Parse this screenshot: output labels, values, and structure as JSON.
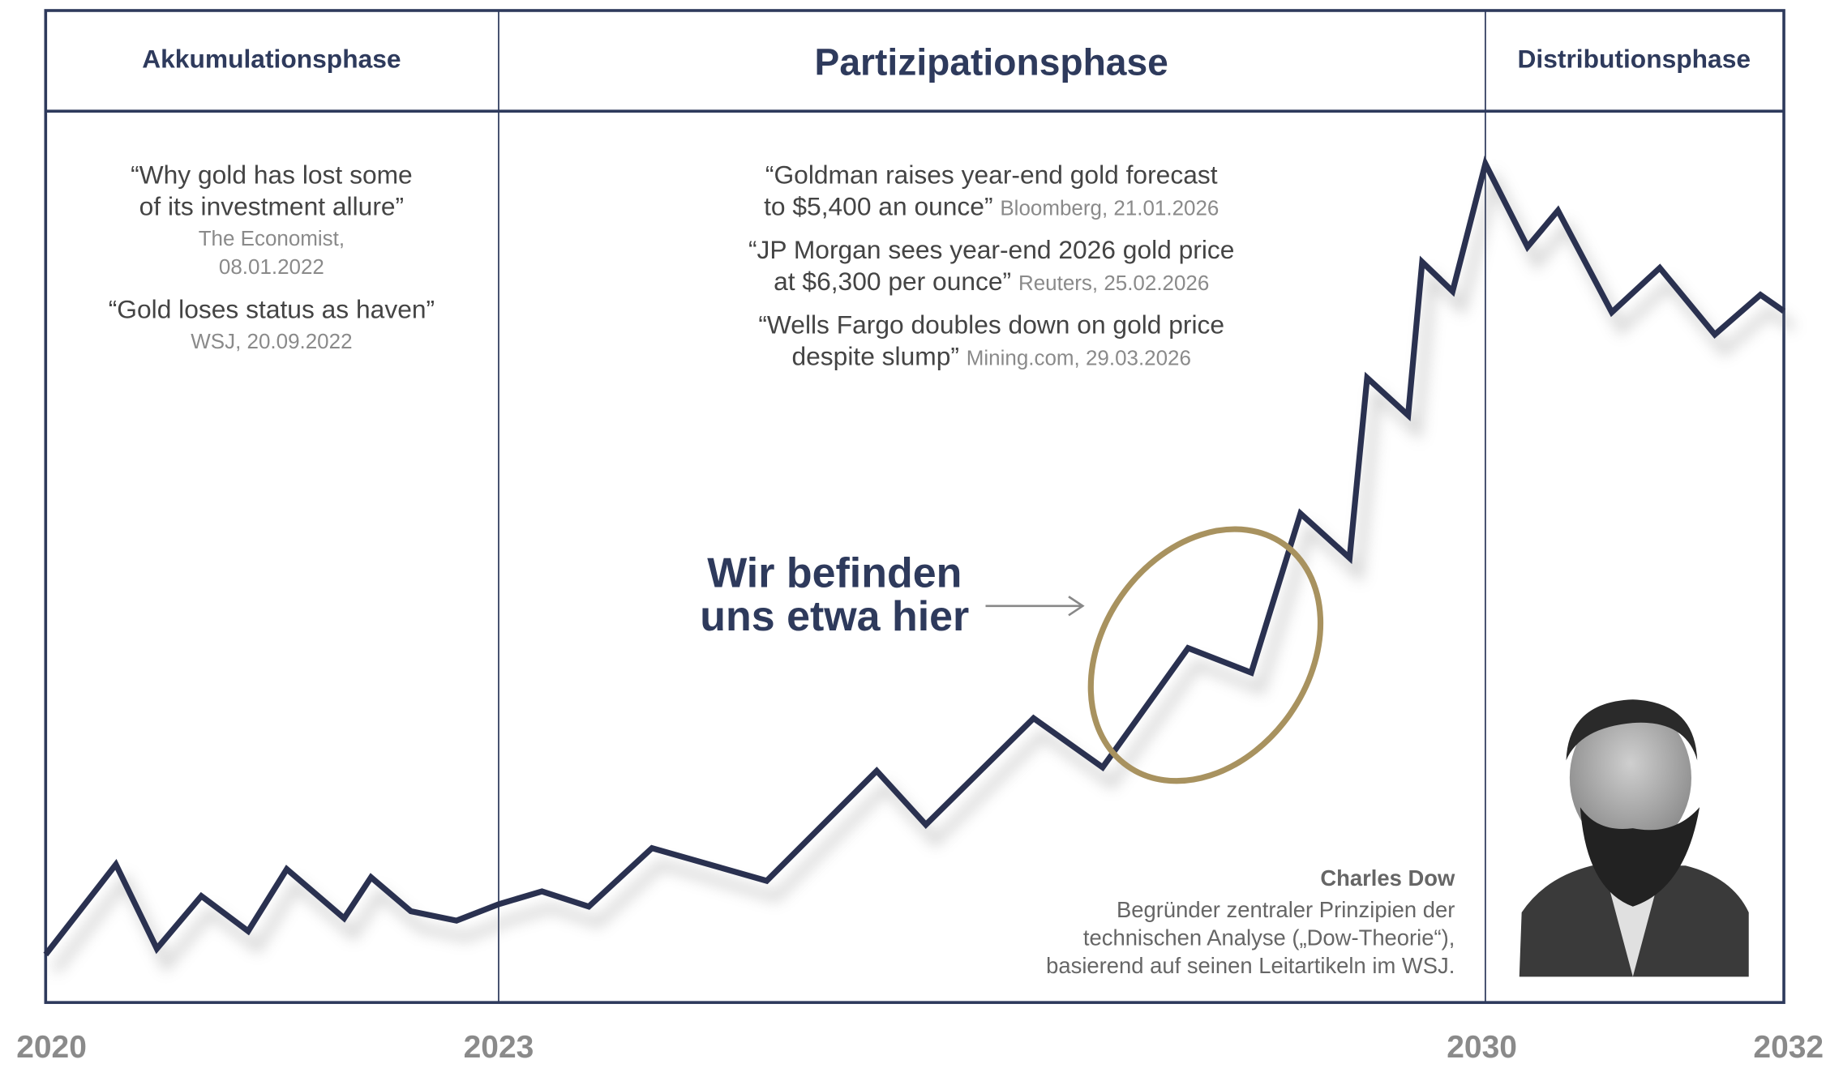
{
  "phases": [
    "Akkumulationsphase",
    "Partizipationsphase",
    "Distributionsphase"
  ],
  "left_quotes": {
    "q1_line1": "“Why gold has lost some",
    "q1_line2": "of its investment allure”",
    "q1_source1": "The Economist,",
    "q1_source2": "08.01.2022",
    "q2": "“Gold loses status as haven”",
    "q2_source": "WSJ, 20.09.2022"
  },
  "middle_quotes": [
    {
      "line1": "“Goldman raises year-end gold forecast",
      "line2": "to $5,400 an ounce”",
      "source": "Bloomberg, 21.01.2026"
    },
    {
      "line1": "“JP Morgan sees year-end 2026 gold price",
      "line2": "at $6,300 per ounce”",
      "source": "Reuters, 25.02.2026"
    },
    {
      "line1": "“Wells Fargo doubles down on gold price",
      "line2": "despite slump”",
      "source": "Mining.com, 29.03.2026"
    }
  ],
  "callout": [
    "Wir befinden",
    "uns etwa hier"
  ],
  "person": {
    "name": "Charles Dow",
    "desc": [
      "Begründer zentraler Prinzipien der",
      "technischen Analyse („Dow-Theorie“),",
      "basierend auf seinen Leitartikeln im WSJ."
    ]
  },
  "years": [
    "2020",
    "2023",
    "2030",
    "2032"
  ]
}
